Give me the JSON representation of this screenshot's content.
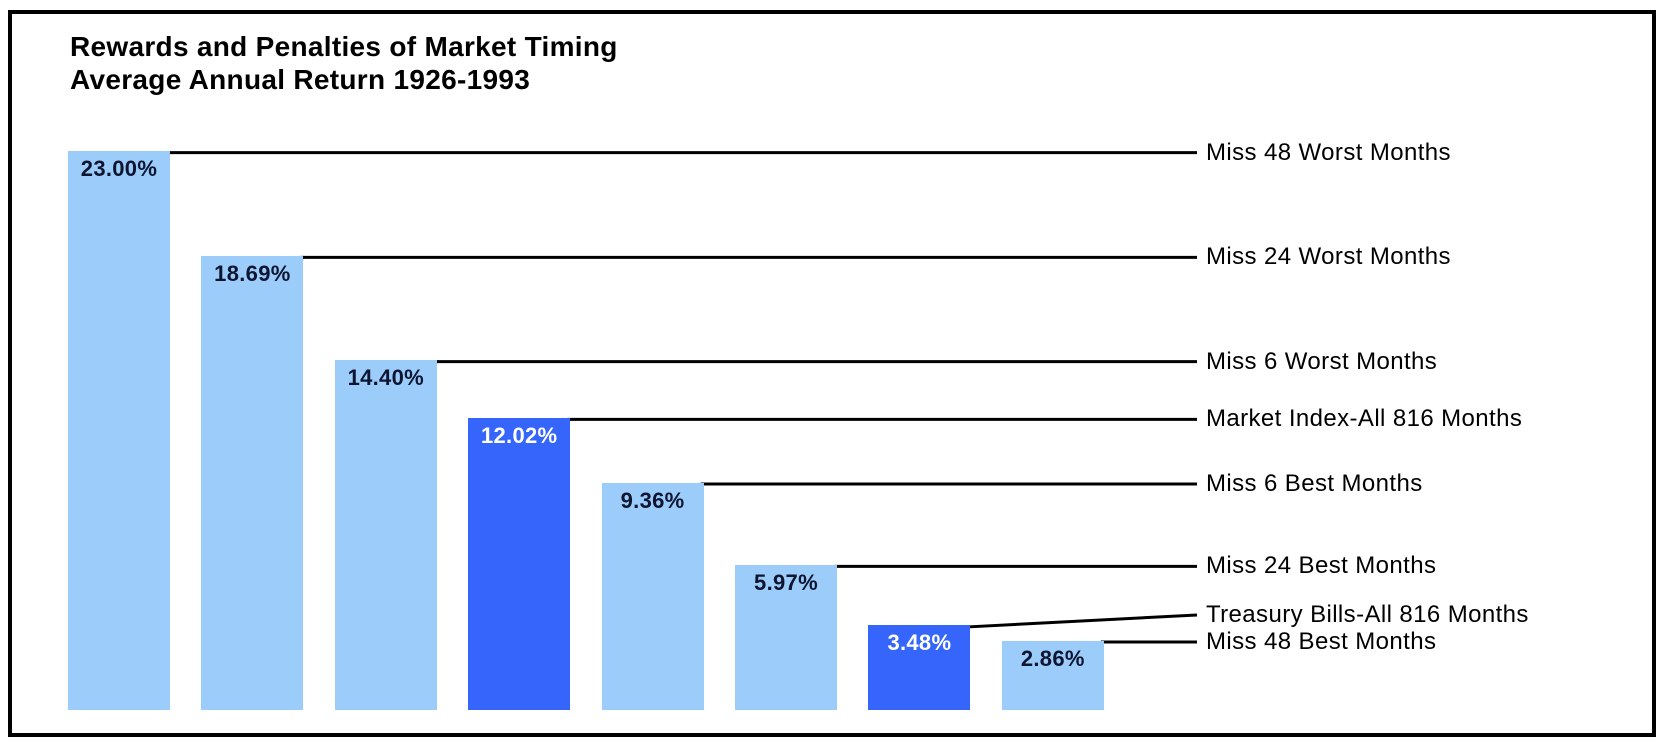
{
  "chart_data": {
    "type": "bar",
    "title": "Rewards and Penalties of Market Timing",
    "subtitle": "Average Annual Return 1926-1993",
    "categories": [
      "Miss 48 Worst Months",
      "Miss 24 Worst Months",
      "Miss 6 Worst Months",
      "Market Index-All 816 Months",
      "Miss 6 Best Months",
      "Miss 24 Best Months",
      "Treasury Bills-All 816 Months",
      "Miss 48 Best Months"
    ],
    "values": [
      23.0,
      18.69,
      14.4,
      12.02,
      9.36,
      5.97,
      3.48,
      2.86
    ],
    "value_labels": [
      "23.00%",
      "18.69%",
      "14.40%",
      "12.02%",
      "9.36%",
      "5.97%",
      "3.48%",
      "2.86%"
    ],
    "highlight_indices": [
      3,
      6
    ],
    "xlabel": "",
    "ylabel": "",
    "ylim": [
      0,
      23
    ],
    "grid": false,
    "legend": "none",
    "orientation": "vertical",
    "annotation_style": "horizontal leader lines from each bar top to category labels on the right"
  },
  "colors": {
    "background": "#FFFFFF",
    "frame_border": "#000000",
    "leader_line": "#000000",
    "bar_light_blue": "#9CCCFA",
    "bar_dark_blue": "#3565FA",
    "value_text_on_light": "#0D1530",
    "value_text_on_dark": "#FFFFFF",
    "label_text": "#000000"
  }
}
